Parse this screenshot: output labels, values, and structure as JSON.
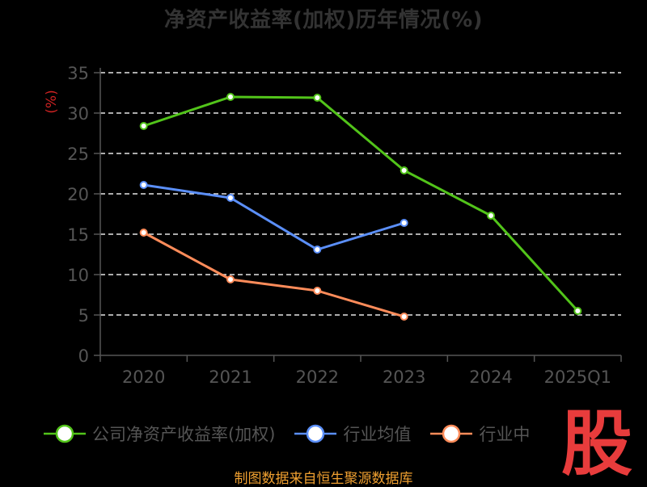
{
  "title": "净资产收益率(加权)历年情况(%)",
  "source": "制图数据来自恒生聚源数据库",
  "logo_char": "股",
  "colors": {
    "background": "#000000",
    "grid": "#e6e6e6",
    "axis": "#555555",
    "unit": "#cc2222",
    "source": "#f0a030",
    "logo": "#e83c3c"
  },
  "chart_data": {
    "type": "line",
    "title": "净资产收益率(加权)历年情况(%)",
    "ylabel": "(%)",
    "xlabel": "",
    "categories": [
      "2020",
      "2021",
      "2022",
      "2023",
      "2024",
      "2025Q1"
    ],
    "ylim": [
      0,
      35
    ],
    "yticks": [
      0,
      5,
      10,
      15,
      20,
      25,
      30,
      35
    ],
    "grid": "horizontal dashed",
    "legend_position": "bottom",
    "series": [
      {
        "name": "公司净资产收益率(加权)",
        "color": "#52c41a",
        "values": [
          28.4,
          32.0,
          31.9,
          22.9,
          17.3,
          5.5
        ]
      },
      {
        "name": "行业均值",
        "color": "#5b8ff9",
        "values": [
          21.1,
          19.5,
          13.1,
          16.4,
          null,
          null
        ]
      },
      {
        "name": "行业中",
        "color": "#ff8c5a",
        "values": [
          15.2,
          9.4,
          8.0,
          4.8,
          null,
          null
        ]
      }
    ]
  }
}
